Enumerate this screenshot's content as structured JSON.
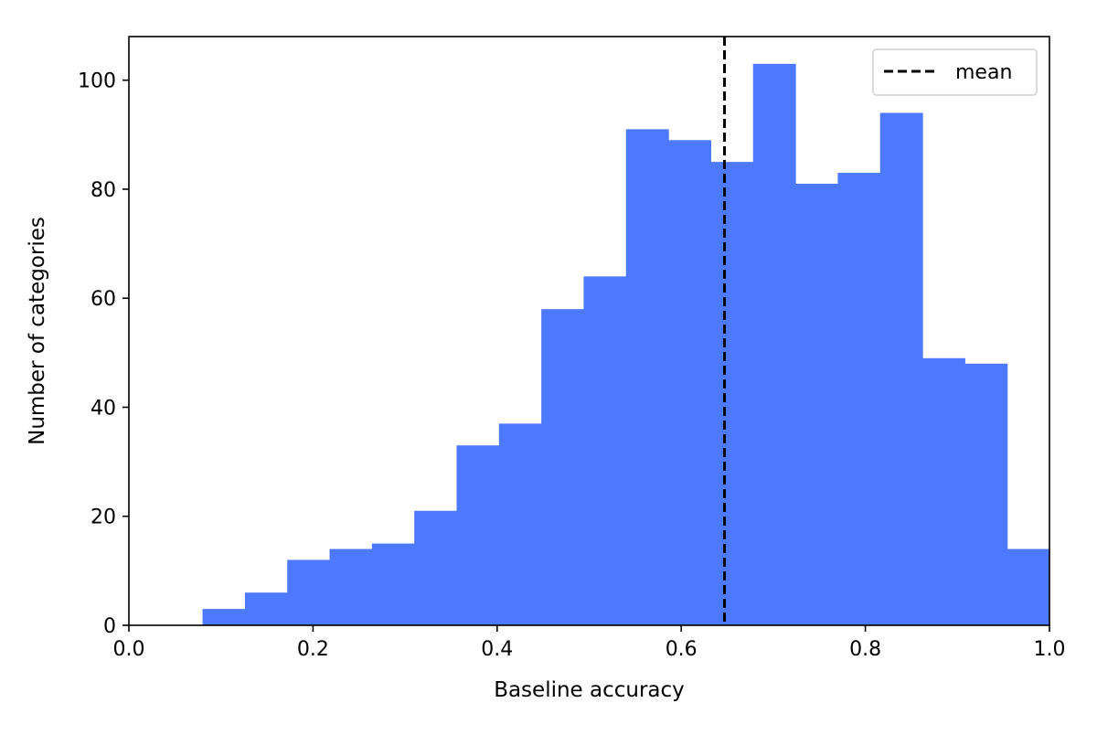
{
  "chart_data": {
    "type": "bar",
    "subtype": "histogram",
    "title": "",
    "xlabel": "Baseline accuracy",
    "ylabel": "Number of categories",
    "xlim": [
      0.0,
      1.0
    ],
    "ylim": [
      0,
      108
    ],
    "x_ticks": [
      0.0,
      0.2,
      0.4,
      0.6,
      0.8,
      1.0
    ],
    "x_tick_labels": [
      "0.0",
      "0.2",
      "0.4",
      "0.6",
      "0.8",
      "1.0"
    ],
    "y_ticks": [
      0,
      20,
      40,
      60,
      80,
      100
    ],
    "y_tick_labels": [
      "0",
      "20",
      "40",
      "60",
      "80",
      "100"
    ],
    "bin_edges": [
      0.08,
      0.126,
      0.172,
      0.218,
      0.264,
      0.31,
      0.356,
      0.402,
      0.448,
      0.494,
      0.54,
      0.586,
      0.632,
      0.678,
      0.724,
      0.77,
      0.816,
      0.862,
      0.908,
      0.954,
      1.0
    ],
    "values": [
      3,
      6,
      12,
      14,
      15,
      21,
      33,
      37,
      58,
      64,
      91,
      89,
      85,
      103,
      81,
      83,
      94,
      49,
      48,
      14
    ],
    "bar_color": "#4d79ff",
    "mean": 0.647,
    "mean_line_color": "#000000",
    "legend": {
      "position": "upper right",
      "entries": [
        {
          "label": "mean",
          "style": "dashed",
          "color": "#000000"
        }
      ]
    },
    "grid": false
  }
}
